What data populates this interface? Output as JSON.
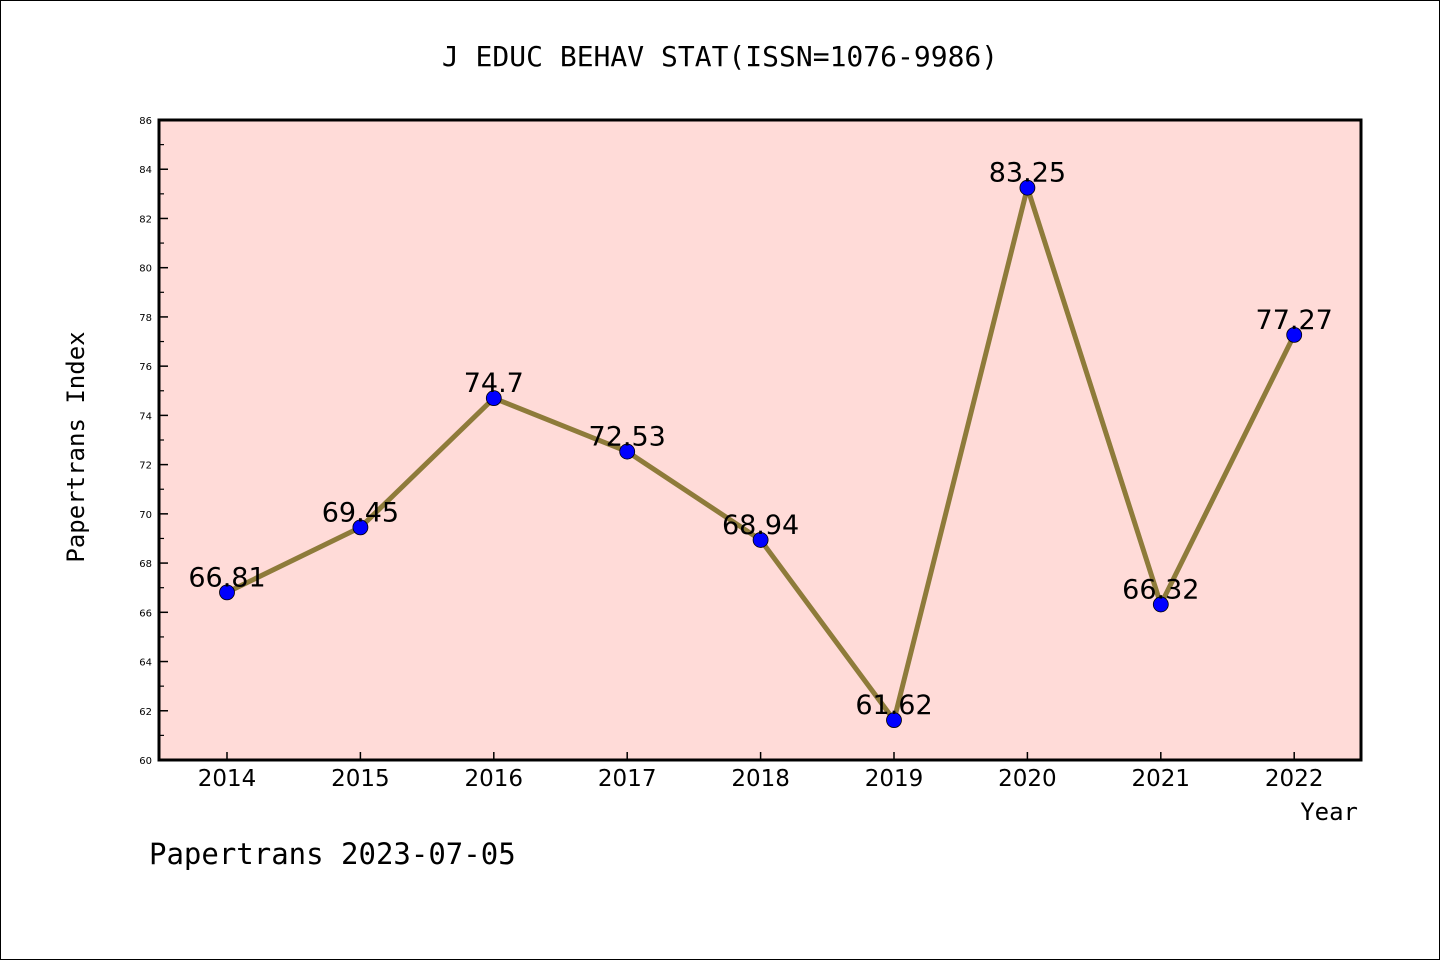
{
  "chart_data": {
    "type": "line",
    "title": "J EDUC BEHAV STAT(ISSN=1076-9986)",
    "xlabel": "Year",
    "ylabel": "Papertrans Index",
    "categories": [
      "2014",
      "2015",
      "2016",
      "2017",
      "2018",
      "2019",
      "2020",
      "2021",
      "2022"
    ],
    "series": [
      {
        "values": [
          66.81,
          69.45,
          74.7,
          72.53,
          68.94,
          61.62,
          83.25,
          66.32,
          77.27
        ],
        "labels": [
          "66.81",
          "69.45",
          "74.7",
          "72.53",
          "68.94",
          "61.62",
          "83.25",
          "66.32",
          "77.27"
        ]
      }
    ],
    "ylim": [
      60,
      86
    ],
    "yticks": [
      "60",
      "62",
      "64",
      "66",
      "68",
      "70",
      "72",
      "74",
      "76",
      "78",
      "80",
      "82",
      "84",
      "86"
    ],
    "grid": false,
    "colors": {
      "plot_background": "#ffdbd8",
      "line": "#8e7b3a",
      "marker": "#0000ff"
    }
  },
  "footer": "Papertrans 2023-07-05"
}
